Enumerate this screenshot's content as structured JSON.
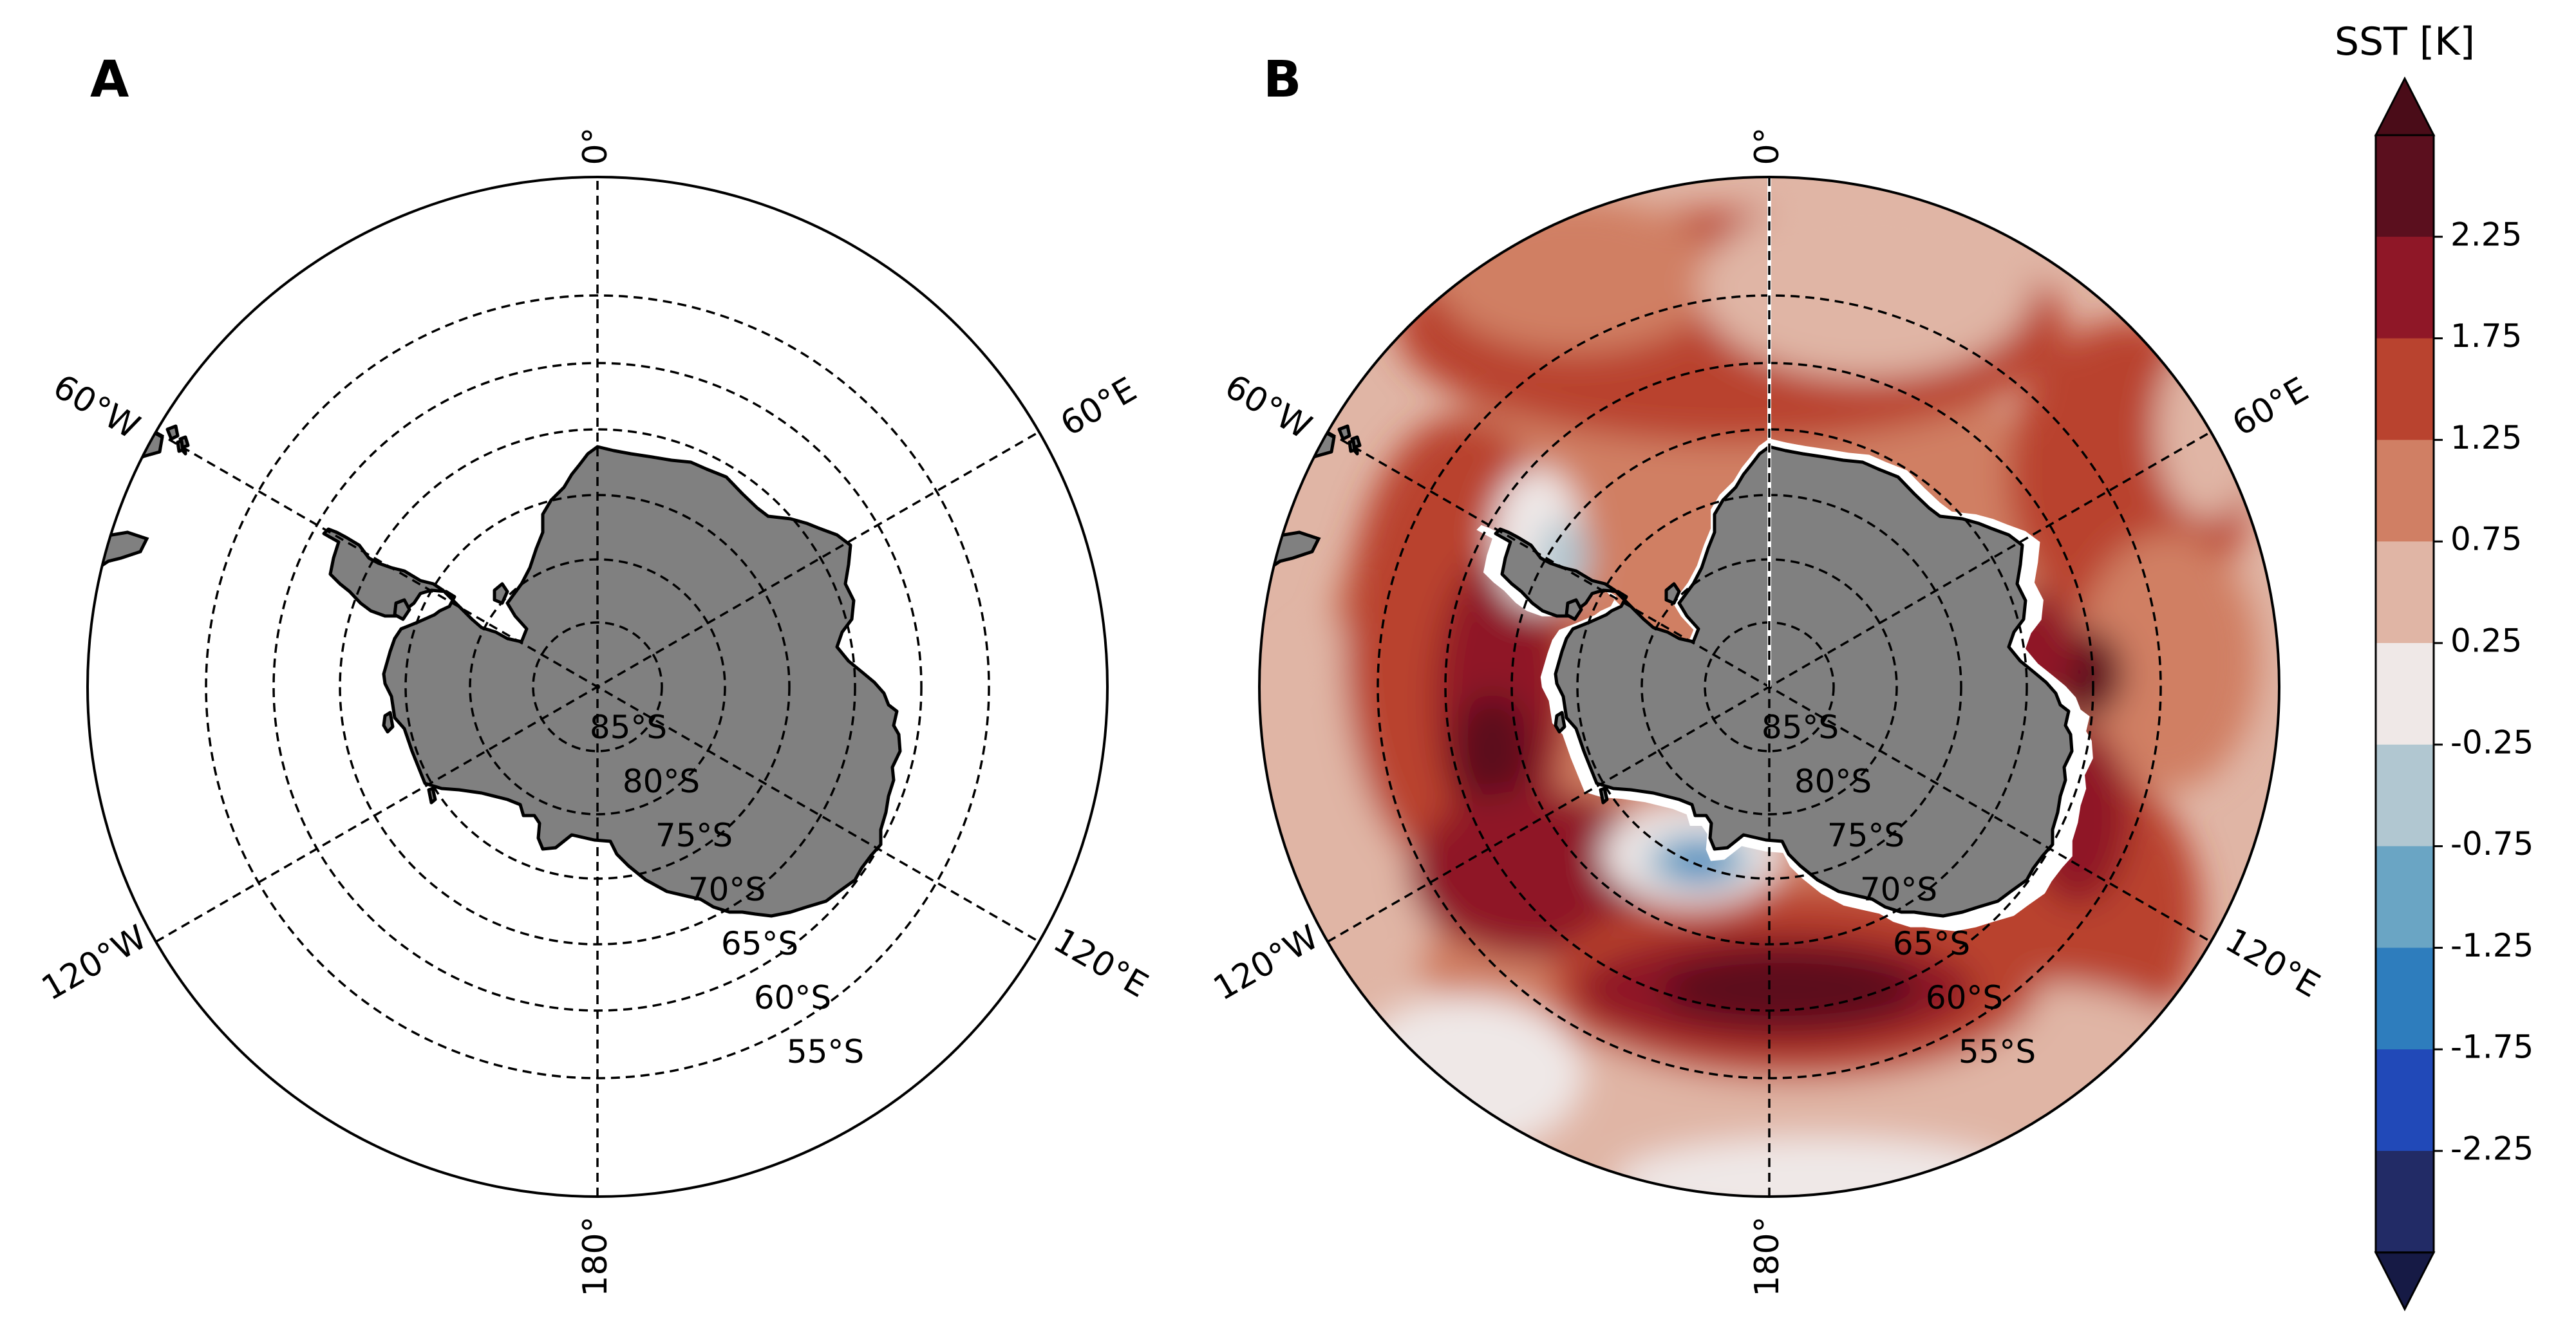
{
  "panel_a": {
    "letter": "A",
    "meridian_labels": [
      "0°",
      "60°E",
      "120°E",
      "180°",
      "120°W",
      "60°W"
    ],
    "parallel_labels": [
      "85°S",
      "80°S",
      "75°S",
      "70°S",
      "65°S",
      "60°S",
      "55°S"
    ]
  },
  "panel_b": {
    "letter": "B",
    "meridian_labels": [
      "0°",
      "60°E",
      "120°E",
      "180°",
      "120°W",
      "60°W"
    ],
    "parallel_labels": [
      "85°S",
      "80°S",
      "75°S",
      "70°S",
      "65°S",
      "60°S",
      "55°S"
    ]
  },
  "colorbar": {
    "title": "SST [K]",
    "tick_labels": [
      "2.25",
      "1.75",
      "1.25",
      "0.75",
      "0.25",
      "-0.25",
      "-0.75",
      "-1.25",
      "-1.75",
      "-2.25"
    ],
    "levels_top_to_bottom": [
      2.5,
      2.25,
      1.75,
      1.25,
      0.75,
      0.25,
      -0.25,
      -0.75,
      -1.25,
      -1.75,
      -2.25
    ],
    "colors_top_to_bottom": [
      "#5b0f1e",
      "#8f1727",
      "#b9432f",
      "#d07f64",
      "#e0b5a5",
      "#efe8e7",
      "#b1c7d1",
      "#6aa5c4",
      "#2e7dbd",
      "#2149b8",
      "#222b66"
    ],
    "extend": "both",
    "over_color": "#4a0c18",
    "under_color": "#161a45"
  },
  "map": {
    "land_color": "#808080",
    "coastline_color": "#000000",
    "gridline_style": "dashed",
    "projection": "south-polar-stereographic"
  }
}
